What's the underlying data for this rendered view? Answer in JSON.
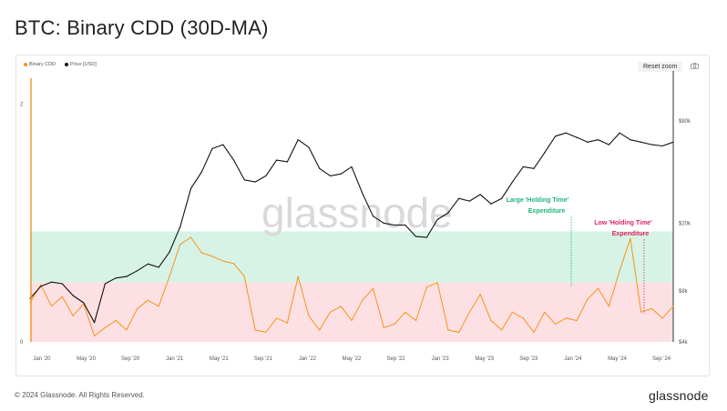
{
  "page": {
    "title": "BTC: Binary CDD (30D-MA)",
    "reset_label": "Reset zoom",
    "camera_icon": "camera-icon"
  },
  "footer": {
    "copyright": "© 2024 Glassnode. All Rights Reserved.",
    "brand": "glassnode"
  },
  "watermark": "glassnode",
  "colors": {
    "cdd": "#f7931a",
    "price": "#111111",
    "band_green": "#d6f3e6",
    "band_red": "#fde0e3",
    "green_text": "#1fb57a",
    "red_text": "#e0245e"
  },
  "chart_data": {
    "type": "line",
    "title": "BTC: Binary CDD (30D-MA)",
    "x_ticks": [
      "Jan '20",
      "May '20",
      "Sep '20",
      "Jan '21",
      "May '21",
      "Sep '21",
      "Jan '22",
      "May '22",
      "Sep '22",
      "Jan '23",
      "May '23",
      "Sep '23",
      "Jan '24",
      "May '24",
      "Sep '24"
    ],
    "x_range": [
      0,
      60
    ],
    "left_axis": {
      "ticks": [
        "0",
        "2"
      ],
      "range": [
        0,
        2.25
      ]
    },
    "right_axis": {
      "ticks": [
        "$4k",
        "$8k",
        "$20k",
        "$80k"
      ],
      "scale": "log",
      "range": [
        4000,
        150000
      ]
    },
    "legend": {
      "position": "top-left",
      "entries": [
        {
          "name": "Binary CDD",
          "color": "#f7931a"
        },
        {
          "name": "Price [USD]",
          "color": "#111111"
        }
      ]
    },
    "bands": [
      {
        "color": "#d6f3e6",
        "y_range": [
          0.5,
          0.93
        ]
      },
      {
        "color": "#fde0e3",
        "y_range": [
          0,
          0.5
        ]
      }
    ],
    "series": [
      {
        "name": "Binary CDD",
        "axis": "left",
        "color": "#f7931a",
        "x": [
          0,
          1,
          2,
          3,
          4,
          5,
          6,
          7,
          8,
          9,
          10,
          11,
          12,
          13,
          14,
          15,
          16,
          17,
          18,
          19,
          20,
          21,
          22,
          23,
          24,
          25,
          26,
          27,
          28,
          29,
          30,
          31,
          32,
          33,
          34,
          35,
          36,
          37,
          38,
          39,
          40,
          41,
          42,
          43,
          44,
          45,
          46,
          47,
          48,
          49,
          50,
          51,
          52,
          53,
          54,
          55,
          56,
          57,
          58,
          59,
          60
        ],
        "values": [
          0.33,
          0.48,
          0.3,
          0.38,
          0.22,
          0.32,
          0.05,
          0.12,
          0.18,
          0.1,
          0.28,
          0.35,
          0.3,
          0.55,
          0.82,
          0.88,
          0.75,
          0.72,
          0.68,
          0.66,
          0.55,
          0.1,
          0.08,
          0.2,
          0.16,
          0.55,
          0.22,
          0.1,
          0.25,
          0.3,
          0.18,
          0.35,
          0.45,
          0.12,
          0.15,
          0.25,
          0.18,
          0.46,
          0.5,
          0.1,
          0.08,
          0.25,
          0.4,
          0.18,
          0.1,
          0.25,
          0.2,
          0.08,
          0.25,
          0.15,
          0.2,
          0.18,
          0.36,
          0.45,
          0.3,
          0.6,
          0.87,
          0.25,
          0.28,
          0.2,
          0.3
        ]
      },
      {
        "name": "Price [USD]",
        "axis": "right",
        "color": "#111111",
        "x": [
          0,
          1,
          2,
          3,
          4,
          5,
          6,
          7,
          8,
          9,
          10,
          11,
          12,
          13,
          14,
          15,
          16,
          17,
          18,
          19,
          20,
          21,
          22,
          23,
          24,
          25,
          26,
          27,
          28,
          29,
          30,
          31,
          32,
          33,
          34,
          35,
          36,
          37,
          38,
          39,
          40,
          41,
          42,
          43,
          44,
          45,
          46,
          47,
          48,
          49,
          50,
          51,
          52,
          53,
          54,
          55,
          56,
          57,
          58,
          59,
          60
        ],
        "values": [
          7200,
          8500,
          9000,
          8800,
          7500,
          6800,
          5200,
          8800,
          9500,
          9700,
          10500,
          11500,
          11000,
          13500,
          19000,
          32000,
          40000,
          55000,
          58000,
          47000,
          36000,
          35000,
          38000,
          47000,
          46000,
          62000,
          56000,
          42000,
          38000,
          39000,
          43000,
          30000,
          22000,
          20000,
          19500,
          19500,
          16700,
          16500,
          21000,
          23000,
          28000,
          27000,
          29500,
          26000,
          28000,
          35000,
          43000,
          42000,
          52000,
          65000,
          68000,
          64000,
          60000,
          62000,
          58000,
          68000,
          62000,
          60000,
          58000,
          57000,
          60000
        ]
      }
    ],
    "annotations": [
      {
        "text_line1": "Large 'Holding Time'",
        "text_line2": "Expenditure",
        "color": "#1fb57a"
      },
      {
        "text_line1": "Low 'Holding Time'",
        "text_line2": "Expenditure",
        "color": "#e0245e"
      }
    ]
  }
}
